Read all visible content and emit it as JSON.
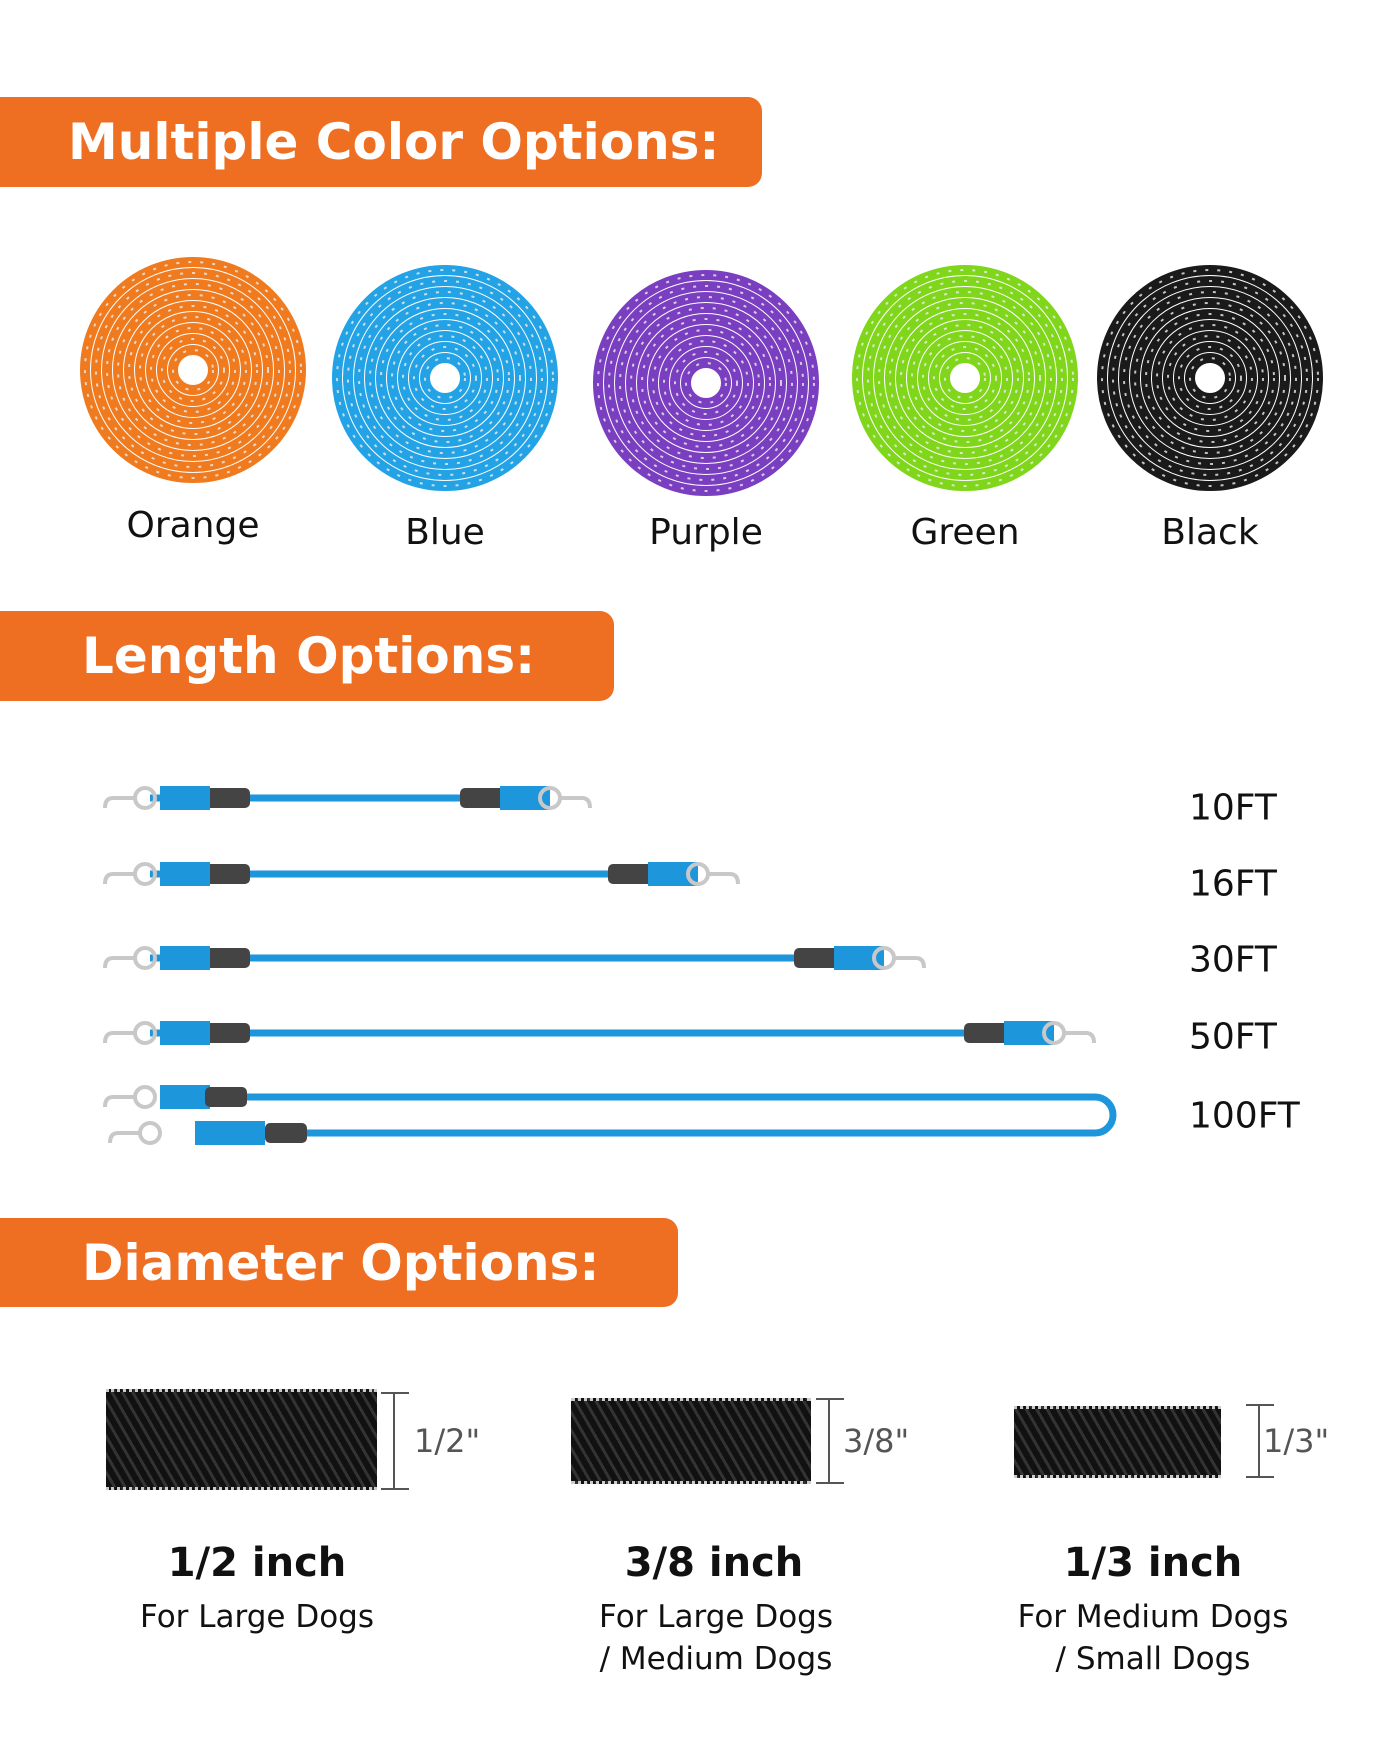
{
  "sections": {
    "colors": {
      "title": "Multiple Color Options:",
      "items": [
        {
          "label": "Orange",
          "color": "#f07a1e"
        },
        {
          "label": "Blue",
          "color": "#23a3e6"
        },
        {
          "label": "Purple",
          "color": "#7a3fc0"
        },
        {
          "label": "Green",
          "color": "#7fd61a"
        },
        {
          "label": "Black",
          "color": "#1a1a1a"
        }
      ]
    },
    "lengths": {
      "title": "Length Options:",
      "items": [
        {
          "label": "10FT"
        },
        {
          "label": "16FT"
        },
        {
          "label": "30FT"
        },
        {
          "label": "50FT"
        },
        {
          "label": "100FT"
        }
      ],
      "leash_color": "#1e96dc"
    },
    "diameters": {
      "title": "Diameter Options:",
      "items": [
        {
          "marker": "1/2\"",
          "title": "1/2 inch",
          "line1": "For Large Dogs",
          "line2": ""
        },
        {
          "marker": "3/8\"",
          "title": "3/8 inch",
          "line1": "For Large Dogs",
          "line2": "/ Medium Dogs"
        },
        {
          "marker": "1/3\"",
          "title": "1/3 inch",
          "line1": "For Medium Dogs",
          "line2": "/ Small Dogs"
        }
      ]
    }
  },
  "accent": "#ee6f22"
}
